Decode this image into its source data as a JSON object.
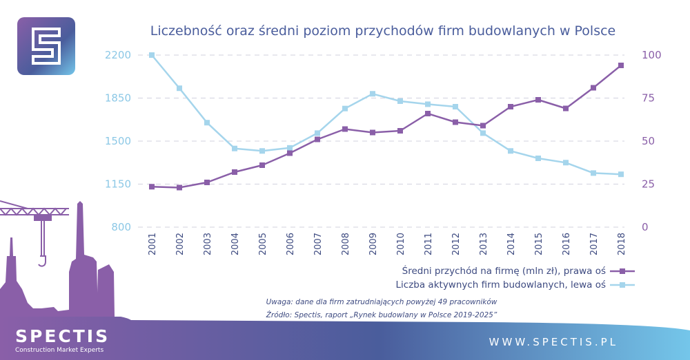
{
  "chart_data": {
    "type": "line",
    "title": "Liczebność oraz średni poziom przychodów firm budowlanych w Polsce",
    "x": [
      "2001",
      "2002",
      "2003",
      "2004",
      "2005",
      "2006",
      "2007",
      "2008",
      "2009",
      "2010",
      "2011",
      "2012",
      "2013",
      "2014",
      "2015",
      "2016",
      "2017",
      "2018"
    ],
    "left_axis": {
      "ylim": [
        800,
        2200
      ],
      "ticks": [
        "2200",
        "1850",
        "1500",
        "1150",
        "800"
      ]
    },
    "right_axis": {
      "ylim": [
        0,
        100
      ],
      "ticks": [
        "100",
        "75",
        "50",
        "25",
        "0"
      ]
    },
    "grid": true,
    "series": [
      {
        "name": "Średni przychód na firmę (mln zł), prawa oś",
        "axis": "right",
        "color": "#8a5fa8",
        "marker": "square",
        "values": [
          23.5,
          23,
          26,
          32,
          36,
          43,
          51,
          57,
          55,
          56,
          66,
          61,
          59,
          70,
          74,
          69,
          81,
          94
        ]
      },
      {
        "name": "Liczba aktywnych firm budowlanych, lewa oś",
        "axis": "left",
        "color": "#a5d5ec",
        "marker": "square",
        "values": [
          2200,
          1930,
          1650,
          1440,
          1420,
          1445,
          1565,
          1765,
          1885,
          1825,
          1800,
          1780,
          1565,
          1420,
          1360,
          1325,
          1240,
          1230
        ]
      }
    ],
    "legend_position": "bottom-right",
    "annotations": [
      "Uwaga: dane dla firm zatrudniających powyżej 49 pracowników",
      "Źródło: Spectis, raport „Rynek budowlany w Polsce 2019-2025”"
    ]
  },
  "brand": {
    "logo_name": "SPECTIS",
    "tagline": "Construction Market Experts",
    "url": "WWW.SPECTIS.PL"
  },
  "colors": {
    "title": "#4a5d9c",
    "left_axis": "#8cc8e6",
    "right_axis": "#8a5fa8",
    "gradient_start": "#8a5fa8",
    "gradient_mid": "#4a5d9c",
    "gradient_end": "#74c6ea"
  }
}
